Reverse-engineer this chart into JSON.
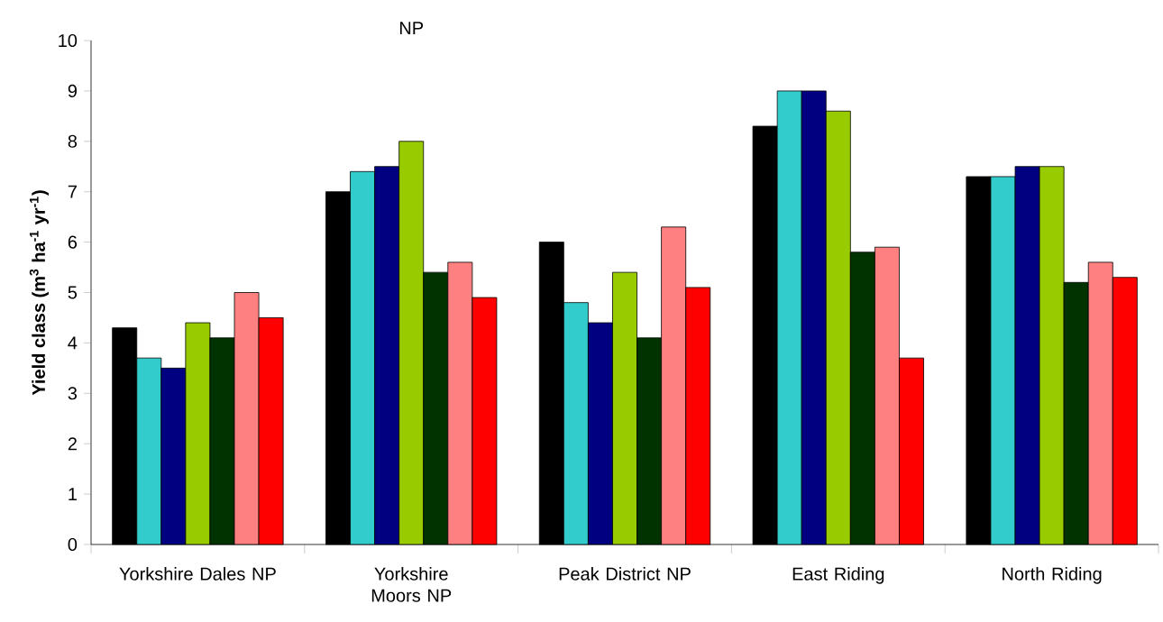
{
  "chart_data": {
    "type": "bar",
    "ylabel": "Yield class (m$^{3}$ ha$^{-1}$ yr$^{-1}$)",
    "categories": [
      "Yorkshire Dales NP",
      "Yorkshire Moors NP",
      "Peak District NP",
      "East Riding",
      "North Riding"
    ],
    "series": [
      {
        "color": "#000000",
        "values": [
          4.3,
          7.0,
          6.0,
          8.3,
          7.3
        ]
      },
      {
        "color": "#33cccc",
        "values": [
          3.7,
          7.4,
          4.8,
          9.0,
          7.3
        ]
      },
      {
        "color": "#000080",
        "values": [
          3.5,
          7.5,
          4.4,
          9.0,
          7.5
        ]
      },
      {
        "color": "#99cc00",
        "values": [
          4.4,
          8.0,
          5.4,
          8.6,
          7.5
        ]
      },
      {
        "color": "#003300",
        "values": [
          4.1,
          5.4,
          4.1,
          5.8,
          5.2
        ]
      },
      {
        "color": "#ff8080",
        "values": [
          5.0,
          5.6,
          6.3,
          5.9,
          5.6
        ]
      },
      {
        "color": "#ff0000",
        "values": [
          4.5,
          4.9,
          5.1,
          3.7,
          5.3
        ]
      }
    ],
    "ylim": [
      0,
      10
    ],
    "yticks": [
      0,
      1,
      2,
      3,
      4,
      5,
      6,
      7,
      8,
      9,
      10
    ],
    "annotations": [
      "NP"
    ]
  }
}
